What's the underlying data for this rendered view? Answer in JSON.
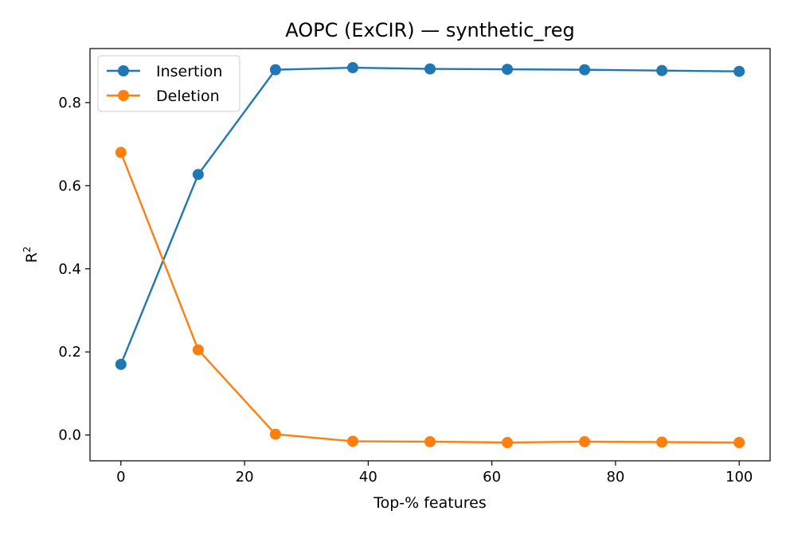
{
  "chart_data": {
    "type": "line",
    "title": "AOPC (ExCIR) — synthetic_reg",
    "xlabel": "Top-% features",
    "ylabel": "R",
    "ylabel_superscript": "2",
    "x": [
      0,
      12.5,
      25,
      37.5,
      50,
      62.5,
      75,
      87.5,
      100
    ],
    "xlim": [
      -5,
      105
    ],
    "ylim": [
      -0.062,
      0.93
    ],
    "xticks": [
      0,
      20,
      40,
      60,
      80,
      100
    ],
    "yticks": [
      0.0,
      0.2,
      0.4,
      0.6,
      0.8
    ],
    "ytick_labels": [
      "0.0",
      "0.2",
      "0.4",
      "0.6",
      "0.8"
    ],
    "grid": false,
    "legend_position": "top-left",
    "series": [
      {
        "name": "Insertion",
        "color": "#1f77b4",
        "marker": "circle",
        "values": [
          0.17,
          0.627,
          0.879,
          0.884,
          0.881,
          0.88,
          0.879,
          0.877,
          0.875
        ]
      },
      {
        "name": "Deletion",
        "color": "#ff7f0e",
        "marker": "circle",
        "values": [
          0.68,
          0.205,
          0.002,
          -0.015,
          -0.016,
          -0.018,
          -0.016,
          -0.017,
          -0.018
        ]
      }
    ]
  }
}
